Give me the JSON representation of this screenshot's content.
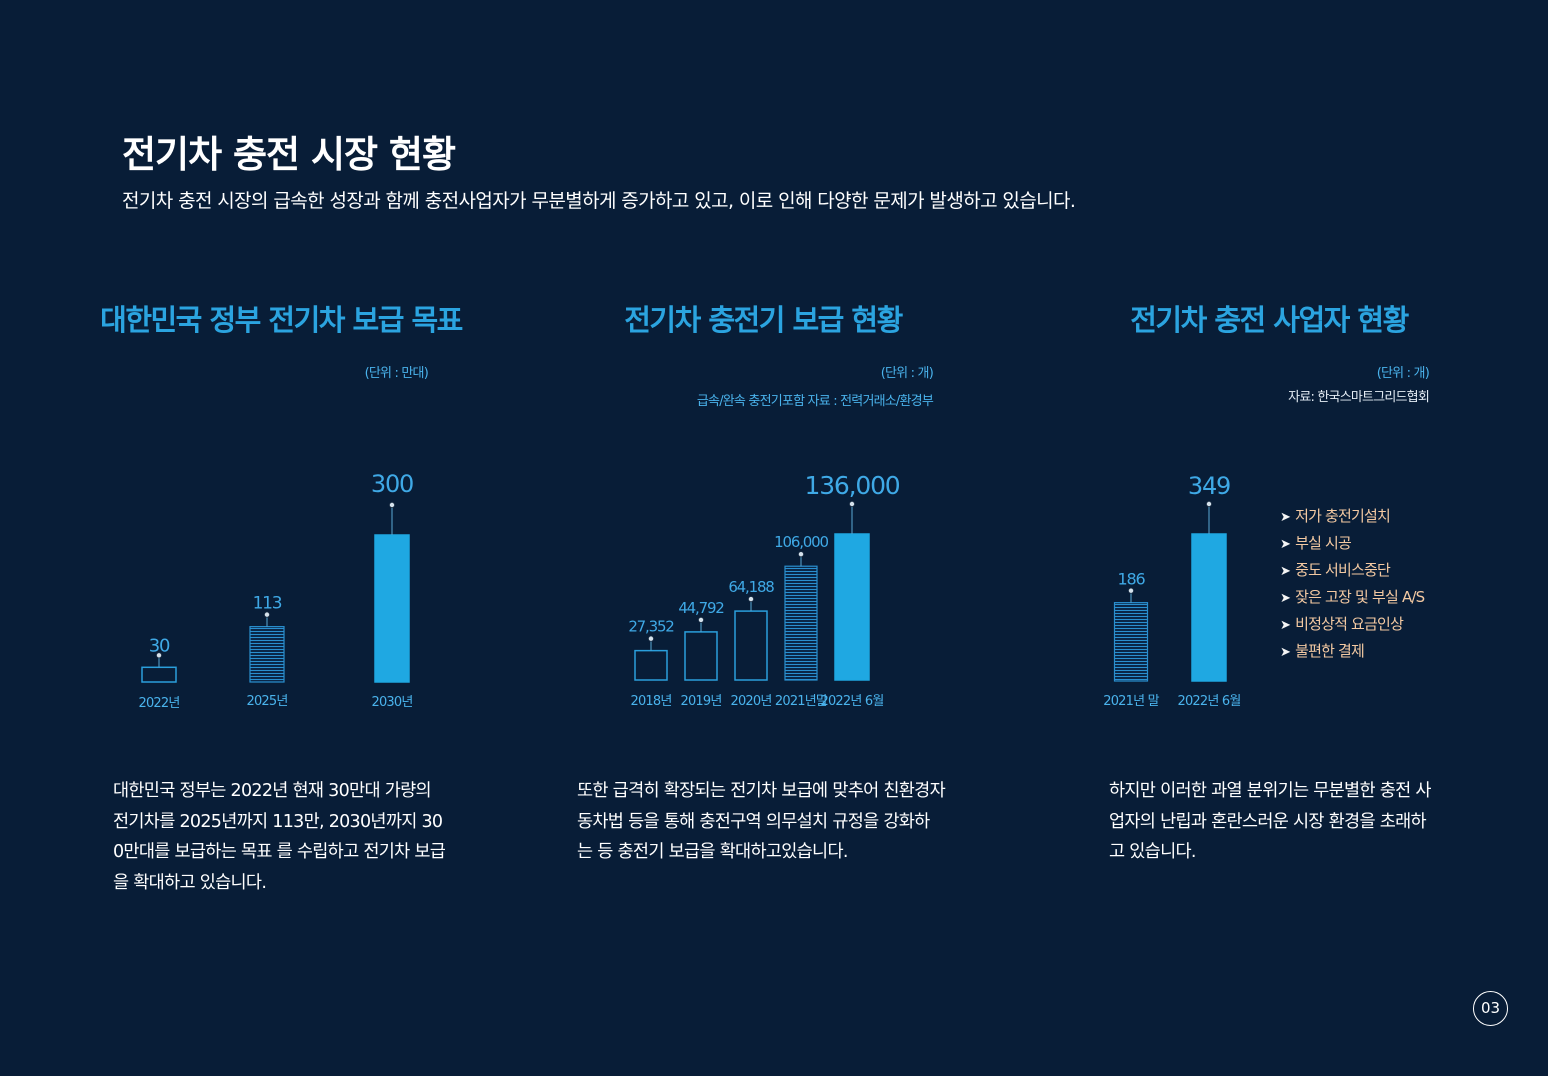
{
  "header": {
    "title": "전기차 충전 시장 현황",
    "subtitle": "전기차 충전 시장의 급속한 성장과 함께 충전사업자가 무분별하게 증가하고 있고,  이로 인해 다양한 문제가 발생하고 있습니다."
  },
  "sections": [
    {
      "title": "대한민국 정부 전기차 보급 목표",
      "unit": "(단위 : 만대)",
      "description": "대한민국 정부는 2022년  현재 30만대  가량의\n전기차를  2025년까지 113만, 2030년까지 30\n0만대를 보급하는 목표  를 수립하고 전기차 보급\n을 확대하고 있습니다."
    },
    {
      "title": "전기차 충전기 보급 현황",
      "unit": "(단위 : 개)",
      "source": "급속/완속 충전기포함 자료 : 전력거래소/환경부",
      "description": "또한 급격히 확장되는 전기차 보급에 맞추어 친환경자\n동차법  등을 통해 충전구역 의무설치 규정을 강화하\n는 등 충전기  보급을 확대하고있습니다."
    },
    {
      "title": "전기차 충전 사업자 현황",
      "unit": "(단위 : 개)",
      "source": "자료: 한국스마트그리드협회",
      "issues": [
        "저가 충전기설치",
        "부실 시공",
        "중도 서비스중단",
        "잦은 고장 및 부실 A/S",
        "비정상적 요금인상",
        "불편한 결제"
      ],
      "description": "하지만 이러한 과열 분위기는 무분별한 충전 사\n업자의 난립과 혼란스러운 시장 환경을 초래하\n고 있습니다."
    }
  ],
  "page_number": "03",
  "colors": {
    "background": "#081d37",
    "accent": "#1fa8e2",
    "issue_text": "#f3c9a2"
  },
  "chart_data": [
    {
      "type": "bar",
      "title": "대한민국 정부 전기차 보급 목표",
      "categories": [
        "2022년",
        "2025년",
        "2030년"
      ],
      "values": [
        30,
        113,
        300
      ],
      "value_labels": [
        "30",
        "113",
        "300"
      ],
      "styles": [
        "outline",
        "hatched",
        "filled"
      ],
      "unit": "만대",
      "ylim": [
        0,
        300
      ],
      "grid": false,
      "legend": "none"
    },
    {
      "type": "bar",
      "title": "전기차 충전기 보급 현황",
      "categories": [
        "2018년",
        "2019년",
        "2020년",
        "2021년말",
        "2022년 6월"
      ],
      "values": [
        27352,
        44792,
        64188,
        106000,
        136000
      ],
      "value_labels": [
        "27,352",
        "44,792",
        "64,188",
        "106,000",
        "136,000"
      ],
      "styles": [
        "outline",
        "outline",
        "outline",
        "hatched",
        "filled"
      ],
      "unit": "개",
      "ylim": [
        0,
        136000
      ],
      "grid": false,
      "legend": "none"
    },
    {
      "type": "bar",
      "title": "전기차 충전 사업자 현황",
      "categories": [
        "2021년 말",
        "2022년 6월"
      ],
      "values": [
        186,
        349
      ],
      "value_labels": [
        "186",
        "349"
      ],
      "styles": [
        "hatched",
        "filled"
      ],
      "unit": "개",
      "ylim": [
        0,
        349
      ],
      "grid": false,
      "legend": "none"
    }
  ]
}
